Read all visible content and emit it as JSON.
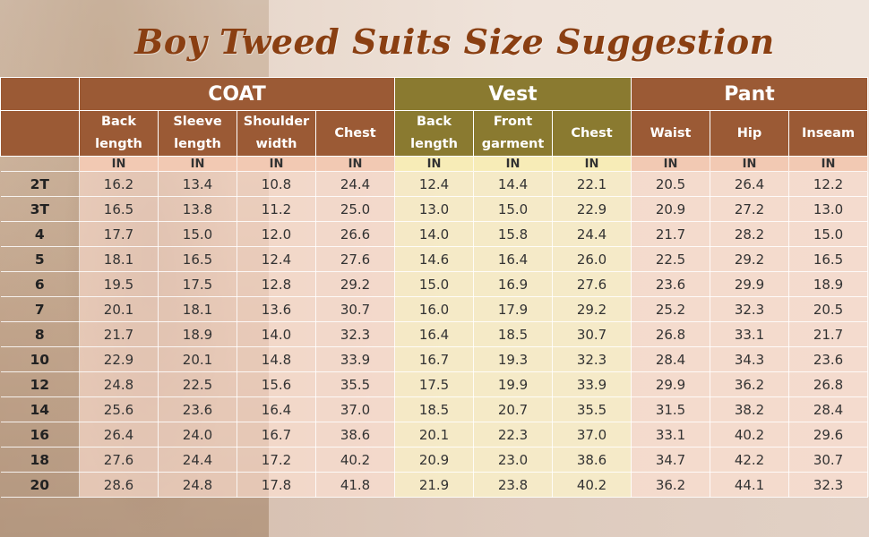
{
  "title": "Boy Tweed Suits Size Suggestion",
  "groups": {
    "coat": "COAT",
    "vest": "Vest",
    "pant": "Pant"
  },
  "columns": {
    "coat": [
      {
        "l1": "Back",
        "l2": "length"
      },
      {
        "l1": "Sleeve",
        "l2": "length"
      },
      {
        "l1": "Shoulder",
        "l2": "width"
      },
      {
        "l1": "Chest",
        "l2": ""
      }
    ],
    "vest": [
      {
        "l1": "Back",
        "l2": "length"
      },
      {
        "l1": "Front",
        "l2": "garment"
      },
      {
        "l1": "Chest",
        "l2": ""
      }
    ],
    "pant": [
      {
        "l1": "Waist",
        "l2": ""
      },
      {
        "l1": "Hip",
        "l2": ""
      },
      {
        "l1": "Inseam",
        "l2": ""
      }
    ]
  },
  "unit": "IN",
  "rows": [
    {
      "size": "2T",
      "values": [
        "16.2",
        "13.4",
        "10.8",
        "24.4",
        "12.4",
        "14.4",
        "22.1",
        "20.5",
        "26.4",
        "12.2"
      ]
    },
    {
      "size": "3T",
      "values": [
        "16.5",
        "13.8",
        "11.2",
        "25.0",
        "13.0",
        "15.0",
        "22.9",
        "20.9",
        "27.2",
        "13.0"
      ]
    },
    {
      "size": "4",
      "values": [
        "17.7",
        "15.0",
        "12.0",
        "26.6",
        "14.0",
        "15.8",
        "24.4",
        "21.7",
        "28.2",
        "15.0"
      ]
    },
    {
      "size": "5",
      "values": [
        "18.1",
        "16.5",
        "12.4",
        "27.6",
        "14.6",
        "16.4",
        "26.0",
        "22.5",
        "29.2",
        "16.5"
      ]
    },
    {
      "size": "6",
      "values": [
        "19.5",
        "17.5",
        "12.8",
        "29.2",
        "15.0",
        "16.9",
        "27.6",
        "23.6",
        "29.9",
        "18.9"
      ]
    },
    {
      "size": "7",
      "values": [
        "20.1",
        "18.1",
        "13.6",
        "30.7",
        "16.0",
        "17.9",
        "29.2",
        "25.2",
        "32.3",
        "20.5"
      ]
    },
    {
      "size": "8",
      "values": [
        "21.7",
        "18.9",
        "14.0",
        "32.3",
        "16.4",
        "18.5",
        "30.7",
        "26.8",
        "33.1",
        "21.7"
      ]
    },
    {
      "size": "10",
      "values": [
        "22.9",
        "20.1",
        "14.8",
        "33.9",
        "16.7",
        "19.3",
        "32.3",
        "28.4",
        "34.3",
        "23.6"
      ]
    },
    {
      "size": "12",
      "values": [
        "24.8",
        "22.5",
        "15.6",
        "35.5",
        "17.5",
        "19.9",
        "33.9",
        "29.9",
        "36.2",
        "26.8"
      ]
    },
    {
      "size": "14",
      "values": [
        "25.6",
        "23.6",
        "16.4",
        "37.0",
        "18.5",
        "20.7",
        "35.5",
        "31.5",
        "38.2",
        "28.4"
      ]
    },
    {
      "size": "16",
      "values": [
        "26.4",
        "24.0",
        "16.7",
        "38.6",
        "20.1",
        "22.3",
        "37.0",
        "33.1",
        "40.2",
        "29.6"
      ]
    },
    {
      "size": "18",
      "values": [
        "27.6",
        "24.4",
        "17.2",
        "40.2",
        "20.9",
        "23.0",
        "38.6",
        "34.7",
        "42.2",
        "30.7"
      ]
    },
    {
      "size": "20",
      "values": [
        "28.6",
        "24.8",
        "17.8",
        "41.8",
        "21.9",
        "23.8",
        "40.2",
        "36.2",
        "44.1",
        "32.3"
      ]
    }
  ]
}
